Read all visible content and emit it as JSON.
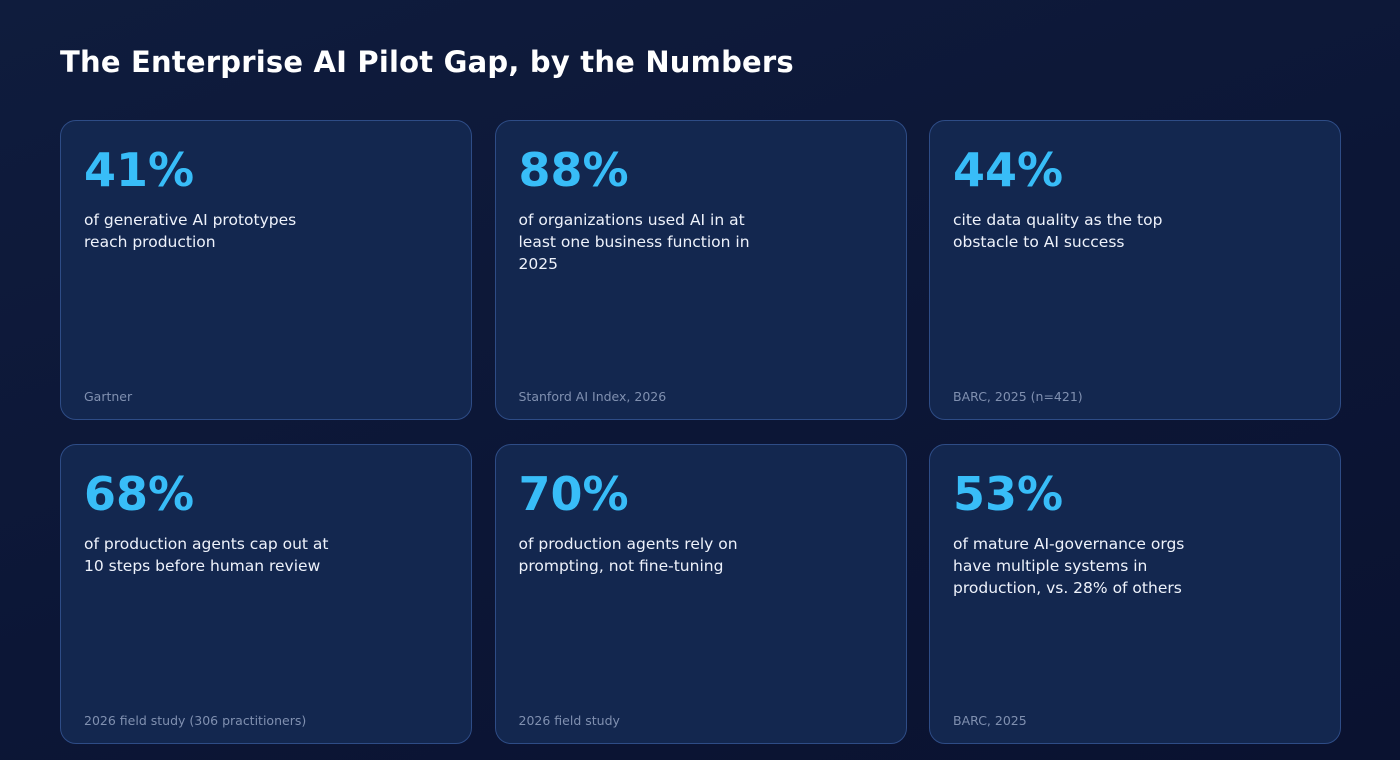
{
  "title": "The Enterprise AI Pilot Gap, by the Numbers",
  "cards": [
    {
      "value": "41%",
      "description": "of generative AI prototypes reach production",
      "source": "Gartner"
    },
    {
      "value": "88%",
      "description": "of organizations used AI in at least one business function in 2025",
      "source": "Stanford AI Index, 2026"
    },
    {
      "value": "44%",
      "description": "cite data quality as the top obstacle to AI success",
      "source": "BARC, 2025 (n=421)"
    },
    {
      "value": "68%",
      "description": "of production agents cap out at 10 steps before human review",
      "source": "2026 field study (306 practitioners)"
    },
    {
      "value": "70%",
      "description": "of production agents rely on prompting, not fine-tuning",
      "source": "2026 field study"
    },
    {
      "value": "53%",
      "description": "of mature AI-governance orgs have multiple systems in production, vs. 28% of others",
      "source": "BARC, 2025"
    }
  ],
  "colors": {
    "background": "#0c1636",
    "card_background": "#13274f",
    "card_border": "#2e4c86",
    "accent": "#38bdf8",
    "source_text": "#8090b0"
  }
}
